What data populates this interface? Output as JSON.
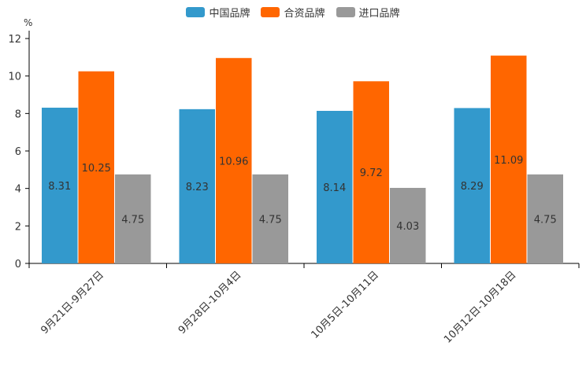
{
  "chart_data": {
    "type": "bar",
    "unit": "%",
    "categories": [
      "9月21日-9月27日",
      "9月28日-10月4日",
      "10月5日-10月11日",
      "10月12日-10月18日"
    ],
    "series": [
      {
        "name": "中国品牌",
        "color": "#3399cc",
        "values": [
          8.31,
          8.23,
          8.14,
          8.29
        ]
      },
      {
        "name": "合资品牌",
        "color": "#ff6600",
        "values": [
          10.25,
          10.96,
          9.72,
          11.09
        ]
      },
      {
        "name": "进口品牌",
        "color": "#999999",
        "values": [
          4.75,
          4.75,
          4.03,
          4.75
        ]
      }
    ],
    "ylim": [
      0,
      12
    ],
    "yticks": [
      0,
      2,
      4,
      6,
      8,
      10,
      12
    ],
    "legend_position": "top-center"
  }
}
